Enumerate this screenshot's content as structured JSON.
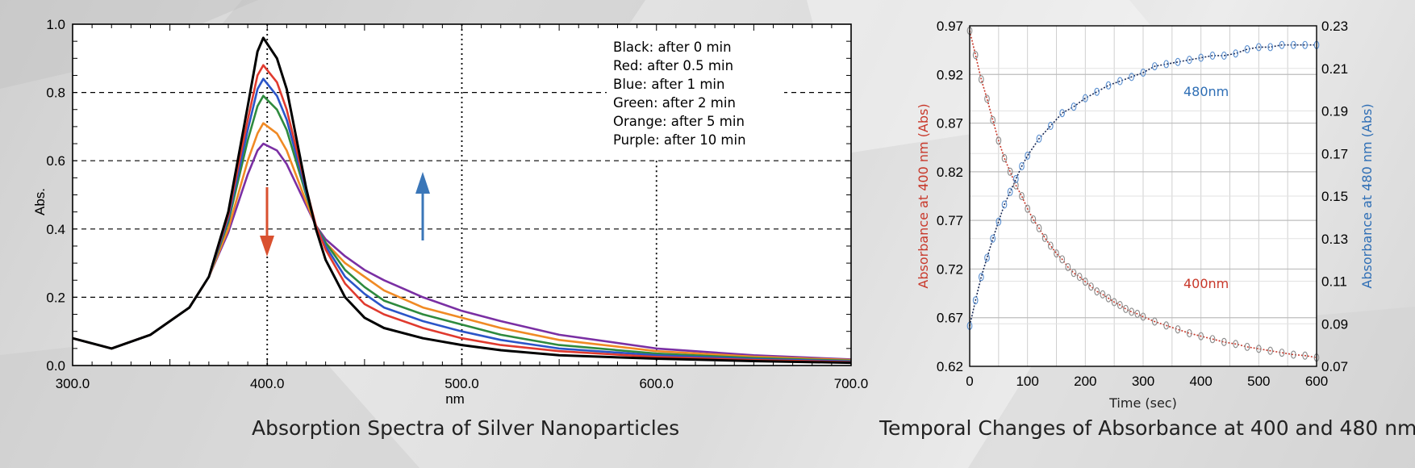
{
  "captions": {
    "left": "Absorption Spectra of Silver Nanoparticles",
    "right": "Temporal Changes of Absorbance at 400 and 480 nm"
  },
  "colors": {
    "black": "#000000",
    "red": "#e03a2e",
    "blue": "#2b55c8",
    "green": "#2e8a3e",
    "orange": "#f08a24",
    "purple": "#7a2fa3",
    "arrow_down": "#d9502f",
    "arrow_up": "#3a76b8",
    "label_400": "#c8382a",
    "label_480": "#2e6eb5"
  },
  "chart_data": [
    {
      "type": "line",
      "xlabel": "nm",
      "ylabel": "Abs.",
      "xlim": [
        300,
        700
      ],
      "ylim": [
        0,
        1.0
      ],
      "xticks": [
        "300.0",
        "400.0",
        "500.0",
        "600.0",
        "700.0"
      ],
      "yticks": [
        "0.0",
        "0.2",
        "0.4",
        "0.6",
        "0.8",
        "1.0"
      ],
      "grid": "dashed",
      "legend_position": "top-right",
      "legend": [
        "Black: after 0 min",
        "Red: after 0.5 min",
        "Blue: after 1 min",
        "Green: after 2 min",
        "Orange: after 5 min",
        "Purple: after 10 min"
      ],
      "series": [
        {
          "color": "black",
          "peak_x": 398,
          "x": [
            300,
            320,
            340,
            360,
            370,
            380,
            390,
            395,
            398,
            405,
            410,
            420,
            425,
            430,
            440,
            450,
            460,
            480,
            500,
            520,
            550,
            600,
            650,
            700
          ],
          "y": [
            0.08,
            0.05,
            0.09,
            0.17,
            0.26,
            0.45,
            0.76,
            0.92,
            0.96,
            0.9,
            0.81,
            0.52,
            0.4,
            0.31,
            0.2,
            0.14,
            0.11,
            0.08,
            0.06,
            0.045,
            0.03,
            0.02,
            0.013,
            0.008
          ]
        },
        {
          "color": "red",
          "peak_x": 398,
          "x": [
            300,
            320,
            340,
            360,
            370,
            380,
            390,
            395,
            398,
            405,
            410,
            420,
            425,
            430,
            440,
            450,
            460,
            480,
            500,
            520,
            550,
            600,
            650,
            700
          ],
          "y": [
            0.08,
            0.05,
            0.09,
            0.17,
            0.26,
            0.44,
            0.72,
            0.85,
            0.88,
            0.83,
            0.75,
            0.52,
            0.41,
            0.34,
            0.24,
            0.18,
            0.15,
            0.11,
            0.08,
            0.06,
            0.042,
            0.025,
            0.016,
            0.01
          ]
        },
        {
          "color": "blue",
          "peak_x": 398,
          "x": [
            300,
            320,
            340,
            360,
            370,
            380,
            390,
            395,
            398,
            405,
            410,
            420,
            425,
            430,
            440,
            450,
            460,
            480,
            500,
            520,
            550,
            600,
            650,
            700
          ],
          "y": [
            0.08,
            0.05,
            0.09,
            0.17,
            0.26,
            0.43,
            0.69,
            0.81,
            0.84,
            0.79,
            0.72,
            0.51,
            0.41,
            0.35,
            0.26,
            0.21,
            0.17,
            0.13,
            0.1,
            0.075,
            0.05,
            0.03,
            0.019,
            0.012
          ]
        },
        {
          "color": "green",
          "peak_x": 398,
          "x": [
            300,
            320,
            340,
            360,
            370,
            380,
            390,
            395,
            398,
            405,
            410,
            420,
            425,
            430,
            440,
            450,
            460,
            480,
            500,
            520,
            550,
            600,
            650,
            700
          ],
          "y": [
            0.08,
            0.05,
            0.09,
            0.17,
            0.26,
            0.42,
            0.66,
            0.76,
            0.79,
            0.75,
            0.69,
            0.5,
            0.41,
            0.36,
            0.28,
            0.23,
            0.19,
            0.15,
            0.12,
            0.09,
            0.06,
            0.035,
            0.022,
            0.014
          ]
        },
        {
          "color": "orange",
          "peak_x": 398,
          "x": [
            300,
            320,
            340,
            360,
            370,
            380,
            390,
            395,
            398,
            405,
            410,
            420,
            425,
            430,
            440,
            450,
            460,
            480,
            500,
            520,
            550,
            600,
            650,
            700
          ],
          "y": [
            0.08,
            0.05,
            0.09,
            0.17,
            0.26,
            0.4,
            0.6,
            0.68,
            0.71,
            0.68,
            0.63,
            0.48,
            0.41,
            0.36,
            0.3,
            0.26,
            0.22,
            0.17,
            0.14,
            0.11,
            0.075,
            0.042,
            0.026,
            0.016
          ]
        },
        {
          "color": "purple",
          "peak_x": 398,
          "x": [
            300,
            320,
            340,
            360,
            370,
            380,
            390,
            395,
            398,
            405,
            410,
            420,
            425,
            430,
            440,
            450,
            460,
            480,
            500,
            520,
            550,
            600,
            650,
            700
          ],
          "y": [
            0.08,
            0.05,
            0.09,
            0.17,
            0.26,
            0.39,
            0.56,
            0.63,
            0.65,
            0.63,
            0.59,
            0.47,
            0.41,
            0.37,
            0.32,
            0.28,
            0.25,
            0.2,
            0.16,
            0.13,
            0.09,
            0.05,
            0.03,
            0.018
          ]
        }
      ]
    },
    {
      "type": "scatter",
      "xlabel": "Time (sec)",
      "ylabel_left": "Absorbance at 400 nm (Abs)",
      "ylabel_right": "Absorbance at 480 nm (Abs)",
      "xlim": [
        0,
        600
      ],
      "ylim_left": [
        0.62,
        0.97
      ],
      "ylim_right": [
        0.07,
        0.23
      ],
      "xticks": [
        "0",
        "100",
        "200",
        "300",
        "400",
        "500",
        "600"
      ],
      "yticks_left": [
        "0.62",
        "0.67",
        "0.72",
        "0.77",
        "0.82",
        "0.87",
        "0.92",
        "0.97"
      ],
      "yticks_right": [
        "0.07",
        "0.09",
        "0.11",
        "0.13",
        "0.15",
        "0.17",
        "0.19",
        "0.21",
        "0.23"
      ],
      "grid": true,
      "series": [
        {
          "name": "400nm",
          "axis": "left",
          "color": "label_400",
          "x": [
            0,
            10,
            20,
            30,
            40,
            50,
            60,
            70,
            80,
            90,
            100,
            110,
            120,
            130,
            140,
            150,
            160,
            170,
            180,
            190,
            200,
            210,
            220,
            230,
            240,
            250,
            260,
            270,
            280,
            290,
            300,
            320,
            340,
            360,
            380,
            400,
            420,
            440,
            460,
            480,
            500,
            520,
            540,
            560,
            580,
            600
          ],
          "y": [
            0.965,
            0.94,
            0.915,
            0.895,
            0.873,
            0.852,
            0.834,
            0.82,
            0.806,
            0.795,
            0.782,
            0.771,
            0.762,
            0.752,
            0.744,
            0.736,
            0.73,
            0.722,
            0.716,
            0.712,
            0.707,
            0.702,
            0.697,
            0.694,
            0.69,
            0.686,
            0.683,
            0.679,
            0.676,
            0.674,
            0.671,
            0.666,
            0.662,
            0.658,
            0.654,
            0.651,
            0.648,
            0.645,
            0.643,
            0.64,
            0.638,
            0.636,
            0.634,
            0.632,
            0.631,
            0.629
          ]
        },
        {
          "name": "480nm",
          "axis": "right",
          "color": "label_480",
          "x": [
            0,
            10,
            20,
            30,
            40,
            50,
            60,
            70,
            80,
            90,
            100,
            120,
            140,
            160,
            180,
            200,
            220,
            240,
            260,
            280,
            300,
            320,
            340,
            360,
            380,
            400,
            420,
            440,
            460,
            480,
            500,
            520,
            540,
            560,
            580,
            600
          ],
          "y": [
            0.089,
            0.101,
            0.112,
            0.121,
            0.13,
            0.138,
            0.146,
            0.152,
            0.158,
            0.164,
            0.169,
            0.177,
            0.183,
            0.189,
            0.192,
            0.196,
            0.199,
            0.202,
            0.204,
            0.206,
            0.208,
            0.211,
            0.212,
            0.213,
            0.214,
            0.215,
            0.216,
            0.216,
            0.217,
            0.219,
            0.22,
            0.22,
            0.221,
            0.221,
            0.221,
            0.221
          ]
        }
      ]
    }
  ]
}
